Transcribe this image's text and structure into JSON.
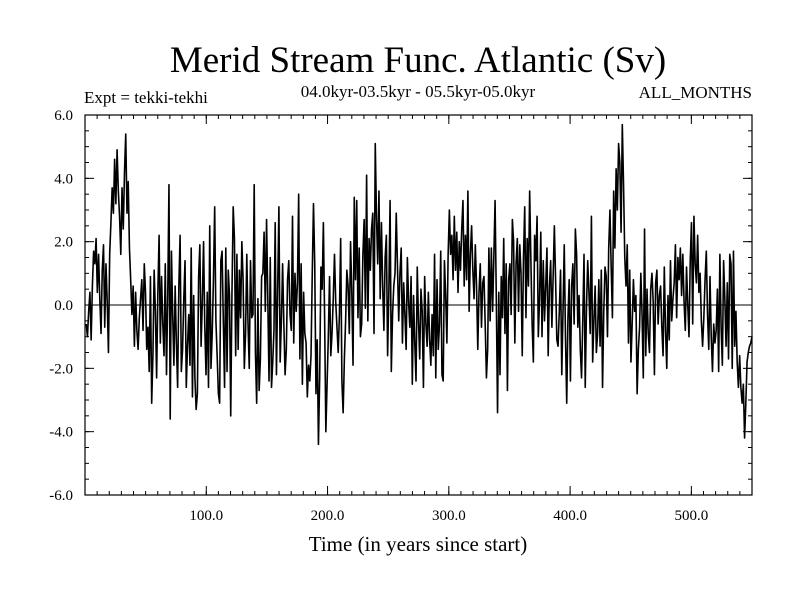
{
  "chart_data": {
    "type": "line",
    "title": "Merid Stream Func. Atlantic (Sv)",
    "experiment_label": "Expt = tekki-tekhi",
    "period_label": "04.0kyr-03.5kyr - 05.5kyr-05.0kyr",
    "months_label": "ALL_MONTHS",
    "xlabel": "Time (in years since start)",
    "ylabel": "",
    "xlim": [
      0,
      550
    ],
    "ylim": [
      -6.0,
      6.0
    ],
    "xticks": [
      100,
      200,
      300,
      400,
      500
    ],
    "xtick_labels": [
      "100.0",
      "200.0",
      "300.0",
      "400.0",
      "500.0"
    ],
    "yticks": [
      6.0,
      4.0,
      2.0,
      0.0,
      -2.0,
      -4.0,
      -6.0
    ],
    "ytick_labels": [
      "6.0",
      "4.0",
      "2.0",
      "0.0",
      "-2.0",
      "-4.0",
      "-6.0"
    ],
    "zero_line": true,
    "grid": false,
    "line_color": "#000000",
    "series": [
      {
        "x_start": 1,
        "x_step": 1,
        "values": [
          -0.6,
          -1.0,
          -0.2,
          0.4,
          -1.1,
          0.6,
          1.7,
          1.3,
          2.1,
          0.4,
          1.6,
          0.2,
          -0.9,
          1.1,
          1.9,
          -0.7,
          1.3,
          0.1,
          -1.5,
          1.6,
          2.6,
          3.7,
          2.9,
          4.6,
          3.2,
          4.9,
          3.6,
          2.8,
          1.6,
          3.7,
          2.4,
          4.2,
          5.4,
          2.9,
          3.9,
          1.8,
          0.8,
          -0.3,
          0.6,
          -1.3,
          0.4,
          -0.8,
          -1.4,
          -0.4,
          0.2,
          0.8,
          -0.8,
          1.3,
          0.4,
          -1.4,
          -0.7,
          -2.1,
          0.9,
          -3.1,
          -1.6,
          1.1,
          -0.2,
          -2.3,
          0.4,
          2.2,
          -1.2,
          0.9,
          -0.6,
          -1.6,
          1.3,
          -2.2,
          0.3,
          3.8,
          -3.6,
          1.7,
          -0.3,
          -1.9,
          0.6,
          -1.2,
          -2.6,
          0.6,
          2.2,
          -2.1,
          -1.4,
          0.2,
          1.4,
          -2.6,
          -1.3,
          -0.3,
          -1.9,
          1.8,
          -2.9,
          0.3,
          -2.3,
          -3.3,
          -2.8,
          0.9,
          1.9,
          -1.3,
          0.1,
          2.0,
          -0.7,
          -2.2,
          0.4,
          -2.6,
          2.5,
          -2.0,
          -0.9,
          0.8,
          3.1,
          -0.5,
          -1.6,
          -2.8,
          -3.1,
          1.4,
          1.7,
          -0.5,
          -2.6,
          1.8,
          -2.1,
          1.1,
          0.3,
          -3.5,
          0.4,
          3.1,
          2.1,
          -1.6,
          1.6,
          -1.4,
          1.1,
          -0.4,
          2.0,
          0.8,
          -2.0,
          -0.9,
          1.6,
          -0.6,
          -2.0,
          1.4,
          -0.4,
          -0.3,
          3.8,
          -1.5,
          -3.1,
          0.2,
          -2.7,
          -1.7,
          0.9,
          1.0,
          2.3,
          -0.2,
          2.7,
          0.2,
          -2.4,
          1.5,
          -2.6,
          -1.8,
          -0.8,
          2.6,
          -2.2,
          0.5,
          3.1,
          -1.8,
          -0.5,
          1.3,
          -0.6,
          -2.2,
          -1.4,
          0.8,
          1.4,
          -0.3,
          -0.8,
          2.8,
          -1.2,
          1.0,
          -0.2,
          0.7,
          3.5,
          -1.7,
          1.3,
          -2.5,
          0.4,
          -0.9,
          -1.2,
          -2.9,
          -1.9,
          -2.4,
          -1.6,
          1.0,
          3.2,
          1.3,
          -2.8,
          -1.1,
          -4.4,
          -2.3,
          1.2,
          0.5,
          2.6,
          -0.4,
          -4.0,
          -2.5,
          -1.0,
          0.9,
          -1.6,
          -0.9,
          0.2,
          1.6,
          0.1,
          -0.7,
          -1.5,
          -0.3,
          2.1,
          -2.4,
          -3.4,
          -1.7,
          -0.5,
          1.1,
          0.6,
          -0.9,
          2.0,
          0.4,
          -1.9,
          3.4,
          0.8,
          3.3,
          -0.4,
          1.8,
          -1.0,
          -0.6,
          1.6,
          2.7,
          -0.1,
          4.1,
          -0.5,
          2.1,
          1.1,
          2.4,
          2.9,
          -0.9,
          5.1,
          2.8,
          1.3,
          3.6,
          0.2,
          2.6,
          0.6,
          -0.8,
          1.5,
          2.2,
          -1.6,
          0.4,
          3.3,
          -2.1,
          -0.3,
          0.6,
          1.0,
          2.9,
          1.2,
          -0.5,
          1.0,
          1.8,
          -1.2,
          0.7,
          -0.3,
          -1.4,
          1.5,
          0.1,
          -0.7,
          0.9,
          -2.5,
          0.3,
          -1.2,
          -2.4,
          1.2,
          -0.5,
          -1.7,
          0.5,
          -0.2,
          -2.6,
          0.9,
          -0.6,
          -1.3,
          0.4,
          -1.1,
          -1.9,
          -0.3,
          -1.6,
          1.6,
          -2.3,
          0.8,
          -1.4,
          -0.6,
          1.7,
          -2.2,
          -2.4,
          1.4,
          0.3,
          -1.2,
          1.6,
          3.0,
          1.6,
          2.2,
          0.8,
          2.8,
          1.1,
          2.3,
          0.4,
          2.0,
          1.1,
          2.4,
          3.3,
          0.6,
          2.2,
          0.8,
          3.6,
          -0.2,
          1.6,
          2.5,
          1.1,
          0.2,
          1.9,
          0.6,
          -1.4,
          0.4,
          1.3,
          -0.7,
          0.7,
          0.9,
          -0.6,
          -2.3,
          -1.4,
          1.8,
          -0.5,
          1.8,
          -0.2,
          1.5,
          3.3,
          0.2,
          -3.4,
          0.4,
          -2.2,
          0.9,
          -0.4,
          2.1,
          -0.9,
          1.3,
          -2.7,
          0.8,
          1.3,
          -0.3,
          2.7,
          2.0,
          -1.2,
          1.3,
          2.1,
          -0.2,
          1.9,
          1.0,
          -1.6,
          1.5,
          3.1,
          -0.4,
          2.1,
          0.6,
          3.6,
          1.4,
          -0.6,
          -1.8,
          2.2,
          1.4,
          2.8,
          -1.0,
          0.2,
          2.3,
          -1.0,
          1.4,
          -0.5,
          0.6,
          1.8,
          -1.6,
          0.6,
          1.4,
          -0.7,
          0.9,
          2.5,
          0.8,
          -1.1,
          -1.3,
          -0.2,
          1.1,
          -2.2,
          -0.2,
          1.9,
          -1.0,
          -3.1,
          -0.4,
          0.8,
          -2.4,
          0.6,
          1.3,
          -0.6,
          2.4,
          1.6,
          -0.7,
          0.3,
          -1.4,
          -2.3,
          -0.5,
          1.6,
          -2.6,
          -0.1,
          1.4,
          0.4,
          -0.9,
          2.8,
          -1.8,
          -0.5,
          0.6,
          -1.5,
          -0.9,
          0.8,
          -1.3,
          1.1,
          -2.6,
          -0.2,
          1.2,
          0.9,
          -1.0,
          1.8,
          3.0,
          1.2,
          -0.4,
          3.6,
          1.8,
          4.3,
          3.0,
          5.1,
          4.5,
          2.3,
          5.7,
          3.8,
          1.5,
          0.6,
          1.9,
          -1.2,
          1.1,
          -1.8,
          -0.6,
          0.8,
          -0.2,
          0.3,
          -2.8,
          -1.4,
          -0.7,
          1.0,
          -0.3,
          -2.3,
          2.4,
          -1.6,
          0.5,
          -0.9,
          -1.5,
          0.5,
          1.0,
          0.1,
          -2.2,
          0.7,
          1.1,
          -0.6,
          0.3,
          0.6,
          -0.7,
          -1.6,
          1.2,
          -0.8,
          -2.0,
          0.3,
          -1.1,
          1.4,
          -0.5,
          0.2,
          0.7,
          1.9,
          -0.4,
          1.5,
          0.8,
          1.8,
          0.3,
          1.6,
          0.1,
          -0.8,
          1.2,
          0.0,
          -1.0,
          1.4,
          2.6,
          -0.6,
          2.8,
          1.3,
          0.7,
          2.2,
          0.4,
          1.0,
          -0.5,
          -1.3,
          -0.4,
          0.8,
          1.7,
          -0.3,
          -1.4,
          0.9,
          -1.0,
          -2.1,
          -0.6,
          -1.2,
          -0.8,
          0.5,
          -2.1,
          1.6,
          -0.7,
          -1.9,
          1.4,
          0.2,
          -1.3,
          0.7,
          -1.7,
          1.6,
          1.3,
          -2.0,
          1.7,
          -1.3,
          -0.2,
          -1.8,
          -2.6,
          -1.6,
          -2.6,
          -3.1,
          -2.5,
          -4.2,
          -3.1,
          -1.8,
          -1.5,
          -1.3,
          -1.2,
          -1.0
        ]
      }
    ]
  }
}
